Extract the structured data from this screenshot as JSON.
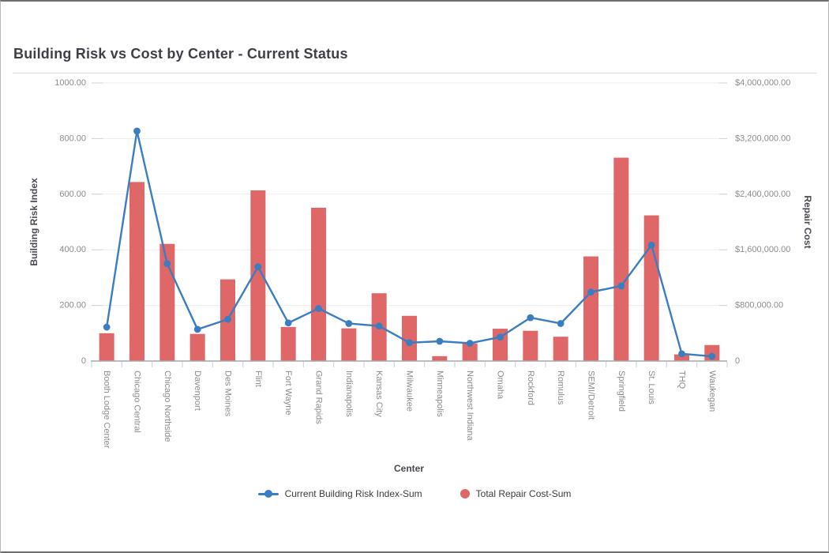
{
  "page": {
    "title": "Building Risk vs Cost by Center - Current Status"
  },
  "chart_data": {
    "type": "combo",
    "title": "Building Risk vs Cost by Center - Current Status",
    "categories": [
      "Booth Lodge Center",
      "Chicago Central",
      "Chicago Northside",
      "Davenport",
      "Des Moines",
      "Flint",
      "Fort Wayne",
      "Grand Rapids",
      "Indianapolis",
      "Kansas City",
      "Milwaukee",
      "Minneapolis",
      "Northwest Indiana",
      "Omaha",
      "Rockford",
      "Romulus",
      "SEMI/Detroit",
      "Springfield",
      "St. Louis",
      "THQ",
      "Waukegan"
    ],
    "series": [
      {
        "name": "Current Building Risk Index-Sum",
        "type": "line",
        "axis": "left",
        "color": "#3a7dc0",
        "values": [
          122,
          827,
          350,
          114,
          150,
          339,
          137,
          189,
          135,
          126,
          66,
          71,
          64,
          86,
          156,
          135,
          248,
          270,
          417,
          26,
          17
        ]
      },
      {
        "name": "Total Repair Cost-Sum",
        "type": "bar",
        "axis": "right",
        "color": "#e06768",
        "values": [
          400000,
          2575000,
          1685000,
          390000,
          1175000,
          2455000,
          490000,
          2205000,
          470000,
          975000,
          650000,
          70000,
          255000,
          465000,
          435000,
          350000,
          1505000,
          2925000,
          2095000,
          95000,
          230000
        ]
      }
    ],
    "left_axis": {
      "label": "Building Risk Index",
      "min": 0,
      "max": 1000,
      "tick_labels": [
        "0",
        "200.00",
        "400.00",
        "600.00",
        "800.00",
        "1000.00"
      ]
    },
    "right_axis": {
      "label": "Repair Cost",
      "min": 0,
      "max": 4000000,
      "tick_labels": [
        "0",
        "$800,000.00",
        "$1,600,000.00",
        "$2,400,000.00",
        "$3,200,000.00",
        "$4,000,000.00"
      ]
    },
    "x_axis": {
      "label": "Center"
    },
    "legend_position": "bottom",
    "grid": "horizontal"
  },
  "colors": {
    "line_series": "#3a7dc0",
    "bar_series": "#e06768",
    "gridline": "#ebebeb",
    "axis_line": "#a9a9a9",
    "tick_label": "#8b8b8b",
    "title_text": "#3f3f48"
  }
}
